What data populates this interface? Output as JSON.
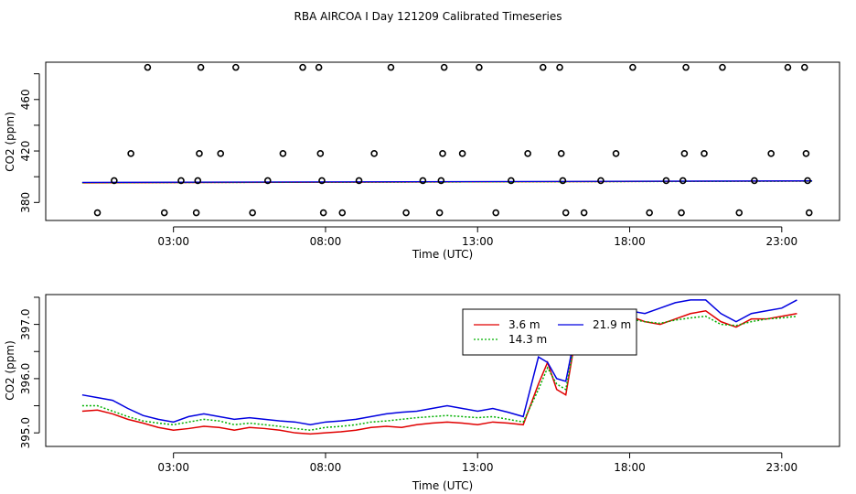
{
  "title": "RBA AIRCOA I  Day 121209  Calibrated Timeseries",
  "colors": {
    "s1": "#e00000",
    "s2": "#00b000",
    "s3": "#0000e0",
    "circle": "#000000"
  },
  "chart_data": [
    {
      "type": "scatter",
      "xlabel": "Time (UTC)",
      "ylabel": "CO2 (ppm)",
      "xlim": [
        -1.2,
        24.9
      ],
      "ylim": [
        366,
        489
      ],
      "xticks": [
        3,
        8,
        13,
        18,
        23
      ],
      "xtick_labels": [
        "03:00",
        "08:00",
        "13:00",
        "18:00",
        "23:00"
      ],
      "yticks": [
        380,
        420,
        460
      ],
      "ytick_labels": [
        "380",
        "420",
        "460"
      ],
      "outlier_points": [
        {
          "x": 0.5,
          "y": 372
        },
        {
          "x": 1.05,
          "y": 397
        },
        {
          "x": 1.6,
          "y": 418
        },
        {
          "x": 2.15,
          "y": 485
        },
        {
          "x": 2.7,
          "y": 372
        },
        {
          "x": 3.25,
          "y": 397
        },
        {
          "x": 3.75,
          "y": 372
        },
        {
          "x": 3.8,
          "y": 397
        },
        {
          "x": 3.85,
          "y": 418
        },
        {
          "x": 3.9,
          "y": 485
        },
        {
          "x": 4.55,
          "y": 418
        },
        {
          "x": 5.05,
          "y": 485
        },
        {
          "x": 5.6,
          "y": 372
        },
        {
          "x": 6.1,
          "y": 397
        },
        {
          "x": 6.6,
          "y": 418
        },
        {
          "x": 7.25,
          "y": 485
        },
        {
          "x": 7.78,
          "y": 485
        },
        {
          "x": 7.83,
          "y": 418
        },
        {
          "x": 7.88,
          "y": 397
        },
        {
          "x": 7.93,
          "y": 372
        },
        {
          "x": 8.55,
          "y": 372
        },
        {
          "x": 9.1,
          "y": 397
        },
        {
          "x": 9.6,
          "y": 418
        },
        {
          "x": 10.15,
          "y": 485
        },
        {
          "x": 10.65,
          "y": 372
        },
        {
          "x": 11.2,
          "y": 397
        },
        {
          "x": 11.75,
          "y": 372
        },
        {
          "x": 11.8,
          "y": 397
        },
        {
          "x": 11.85,
          "y": 418
        },
        {
          "x": 11.9,
          "y": 485
        },
        {
          "x": 12.5,
          "y": 418
        },
        {
          "x": 13.05,
          "y": 485
        },
        {
          "x": 13.6,
          "y": 372
        },
        {
          "x": 14.1,
          "y": 397
        },
        {
          "x": 14.65,
          "y": 418
        },
        {
          "x": 15.15,
          "y": 485
        },
        {
          "x": 15.7,
          "y": 485
        },
        {
          "x": 15.75,
          "y": 418
        },
        {
          "x": 15.8,
          "y": 397
        },
        {
          "x": 15.9,
          "y": 372
        },
        {
          "x": 16.5,
          "y": 372
        },
        {
          "x": 17.05,
          "y": 397
        },
        {
          "x": 17.55,
          "y": 418
        },
        {
          "x": 18.1,
          "y": 485
        },
        {
          "x": 18.65,
          "y": 372
        },
        {
          "x": 19.2,
          "y": 397
        },
        {
          "x": 19.7,
          "y": 372
        },
        {
          "x": 19.75,
          "y": 397
        },
        {
          "x": 19.8,
          "y": 418
        },
        {
          "x": 19.85,
          "y": 485
        },
        {
          "x": 20.45,
          "y": 418
        },
        {
          "x": 21.05,
          "y": 485
        },
        {
          "x": 21.6,
          "y": 372
        },
        {
          "x": 22.1,
          "y": 397
        },
        {
          "x": 22.65,
          "y": 418
        },
        {
          "x": 23.2,
          "y": 485
        },
        {
          "x": 23.75,
          "y": 485
        },
        {
          "x": 23.8,
          "y": 418
        },
        {
          "x": 23.85,
          "y": 397
        },
        {
          "x": 23.9,
          "y": 372
        }
      ],
      "baseline_series": [
        {
          "name": "3.6 m",
          "x": [
            0,
            24
          ],
          "y": [
            395.2,
            396.6
          ]
        },
        {
          "name": "14.3 m",
          "x": [
            0,
            24
          ],
          "y": [
            395.3,
            396.5
          ]
        },
        {
          "name": "21.9 m",
          "x": [
            0,
            24
          ],
          "y": [
            395.6,
            396.8
          ]
        }
      ]
    },
    {
      "type": "line",
      "xlabel": "Time (UTC)",
      "ylabel": "CO2 (ppm)",
      "xlim": [
        -1.2,
        24.9
      ],
      "ylim": [
        394.75,
        397.55
      ],
      "xticks": [
        3,
        8,
        13,
        18,
        23
      ],
      "xtick_labels": [
        "03:00",
        "08:00",
        "13:00",
        "18:00",
        "23:00"
      ],
      "yticks": [
        395.0,
        396.0,
        397.0
      ],
      "ytick_labels": [
        "395.0",
        "396.0",
        "397.0"
      ],
      "legend": {
        "position": "top-center",
        "entries": [
          "3.6 m",
          "14.3 m",
          "21.9 m"
        ]
      },
      "series": [
        {
          "name": "3.6 m",
          "x": [
            0,
            0.5,
            1,
            1.5,
            2,
            2.5,
            3,
            3.5,
            4,
            4.5,
            5,
            5.5,
            6,
            6.5,
            7,
            7.5,
            8,
            8.5,
            9,
            9.5,
            10,
            10.5,
            11,
            11.5,
            12,
            12.5,
            13,
            13.5,
            14,
            14.5,
            15,
            15.3,
            15.6,
            15.9,
            16.2,
            16.5,
            16.8,
            17.1,
            17.5,
            18,
            18.5,
            19,
            19.5,
            20,
            20.5,
            21,
            21.5,
            22,
            22.5,
            23,
            23.5
          ],
          "y": [
            395.4,
            395.42,
            395.35,
            395.25,
            395.18,
            395.1,
            395.05,
            395.08,
            395.12,
            395.1,
            395.05,
            395.1,
            395.08,
            395.05,
            395.0,
            394.98,
            395.0,
            395.02,
            395.05,
            395.1,
            395.12,
            395.1,
            395.15,
            395.18,
            395.2,
            395.18,
            395.15,
            395.2,
            395.18,
            395.15,
            395.9,
            396.3,
            395.8,
            395.7,
            396.7,
            396.8,
            396.9,
            396.95,
            397.05,
            397.15,
            397.05,
            397.0,
            397.1,
            397.2,
            397.25,
            397.05,
            396.95,
            397.1,
            397.1,
            397.15,
            397.2
          ]
        },
        {
          "name": "14.3 m",
          "x": [
            0,
            0.5,
            1,
            1.5,
            2,
            2.5,
            3,
            3.5,
            4,
            4.5,
            5,
            5.5,
            6,
            6.5,
            7,
            7.5,
            8,
            8.5,
            9,
            9.5,
            10,
            10.5,
            11,
            11.5,
            12,
            12.5,
            13,
            13.5,
            14,
            14.5,
            15,
            15.3,
            15.6,
            15.9,
            16.2,
            16.5,
            16.8,
            17.1,
            17.5,
            18,
            18.5,
            19,
            19.5,
            20,
            20.5,
            21,
            21.5,
            22,
            22.5,
            23,
            23.5
          ],
          "y": [
            395.5,
            395.5,
            395.4,
            395.3,
            395.22,
            395.18,
            395.15,
            395.2,
            395.25,
            395.22,
            395.15,
            395.18,
            395.15,
            395.12,
            395.08,
            395.05,
            395.1,
            395.12,
            395.15,
            395.2,
            395.22,
            395.25,
            395.28,
            395.3,
            395.32,
            395.3,
            395.28,
            395.3,
            395.25,
            395.2,
            395.8,
            396.2,
            395.9,
            395.8,
            396.7,
            396.8,
            396.88,
            396.95,
            397.02,
            397.1,
            397.05,
            397.02,
            397.08,
            397.12,
            397.15,
            397.0,
            396.98,
            397.05,
            397.1,
            397.12,
            397.15
          ]
        },
        {
          "name": "21.9 m",
          "x": [
            0,
            0.5,
            1,
            1.5,
            2,
            2.5,
            3,
            3.5,
            4,
            4.5,
            5,
            5.5,
            6,
            6.5,
            7,
            7.5,
            8,
            8.5,
            9,
            9.5,
            10,
            10.5,
            11,
            11.5,
            12,
            12.5,
            13,
            13.5,
            14,
            14.5,
            15,
            15.3,
            15.6,
            15.9,
            16.2,
            16.5,
            16.8,
            17.1,
            17.5,
            18,
            18.5,
            19,
            19.5,
            20,
            20.5,
            21,
            21.5,
            22,
            22.5,
            23,
            23.5
          ],
          "y": [
            395.7,
            395.65,
            395.6,
            395.45,
            395.32,
            395.25,
            395.2,
            395.3,
            395.35,
            395.3,
            395.25,
            395.28,
            395.25,
            395.22,
            395.2,
            395.15,
            395.2,
            395.22,
            395.25,
            395.3,
            395.35,
            395.38,
            395.4,
            395.45,
            395.5,
            395.45,
            395.4,
            395.45,
            395.38,
            395.3,
            396.4,
            396.3,
            396.0,
            395.95,
            396.8,
            396.85,
            396.9,
            397.0,
            397.12,
            397.25,
            397.2,
            397.3,
            397.4,
            397.45,
            397.45,
            397.2,
            397.05,
            397.2,
            397.25,
            397.3,
            397.45
          ]
        }
      ]
    }
  ]
}
